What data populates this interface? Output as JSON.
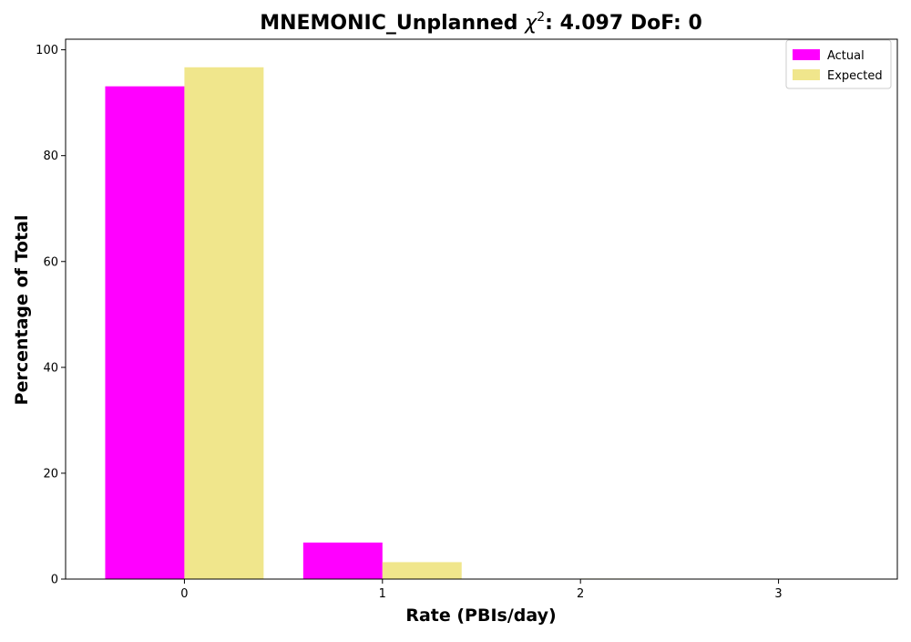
{
  "chart_data": {
    "type": "bar",
    "title": {
      "prefix": "MNEMONIC_Unplanned ",
      "chi": "χ",
      "sup": "2",
      "suffix": ": 4.097 DoF: 0"
    },
    "xlabel": "Rate (PBIs/day)",
    "ylabel": "Percentage of Total",
    "categories": [
      "0",
      "1",
      "2",
      "3"
    ],
    "series": [
      {
        "name": "Actual",
        "color": "#ff00ff",
        "values": [
          93.1,
          6.9,
          0.0,
          0.0
        ]
      },
      {
        "name": "Expected",
        "color": "#f0e68c",
        "values": [
          96.7,
          3.2,
          0.1,
          0.0
        ]
      }
    ],
    "ylim": [
      0,
      102
    ],
    "yticks": [
      0,
      20,
      40,
      60,
      80,
      100
    ],
    "grid": false,
    "legend_position": "top-right"
  }
}
